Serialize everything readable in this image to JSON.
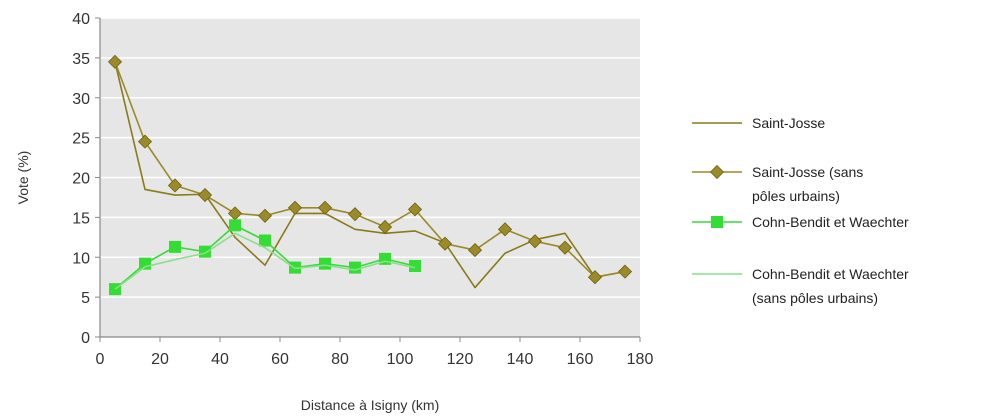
{
  "chart_data": {
    "type": "line",
    "xlabel": "Distance à Isigny (km)",
    "ylabel": "Vote (%)",
    "xlim": [
      0,
      180
    ],
    "ylim": [
      0,
      40
    ],
    "xticks": [
      0,
      20,
      40,
      60,
      80,
      100,
      120,
      140,
      160,
      180
    ],
    "yticks": [
      0,
      5,
      10,
      15,
      20,
      25,
      30,
      35,
      40
    ],
    "grid": true,
    "legend_position": "right",
    "plot_background": "#e6e6e6",
    "series": [
      {
        "name": "Saint-Josse",
        "color": "#8a7a1a",
        "marker": "none",
        "x": [
          5,
          15,
          25,
          35,
          45,
          55,
          65,
          75,
          85,
          95,
          105,
          115,
          125,
          135,
          145,
          155,
          165,
          175
        ],
        "values": [
          34.5,
          18.5,
          17.8,
          17.9,
          12.5,
          9.0,
          15.5,
          15.5,
          13.5,
          13.0,
          13.3,
          11.8,
          6.2,
          10.5,
          12.2,
          13.0,
          7.5,
          8.2
        ]
      },
      {
        "name": "Saint-Josse (sans pôles urbains)",
        "label_lines": [
          "Saint-Josse (sans",
          "pôles urbains)"
        ],
        "color": "#9a8a2a",
        "marker": "diamond",
        "x": [
          5,
          15,
          25,
          35,
          45,
          55,
          65,
          75,
          85,
          95,
          105,
          115,
          125,
          135,
          145,
          155,
          165,
          175
        ],
        "values": [
          34.5,
          24.5,
          19.0,
          17.8,
          15.5,
          15.2,
          16.2,
          16.2,
          15.4,
          13.8,
          16.0,
          11.7,
          10.9,
          13.5,
          12.0,
          11.2,
          7.5,
          8.2
        ]
      },
      {
        "name": "Cohn-Bendit et Waechter",
        "color": "#33dd33",
        "marker": "square",
        "x": [
          5,
          15,
          25,
          35,
          45,
          55,
          65,
          75,
          85,
          95,
          105
        ],
        "values": [
          6.0,
          9.2,
          11.3,
          10.7,
          14.0,
          12.1,
          8.7,
          9.2,
          8.7,
          9.8,
          8.9
        ]
      },
      {
        "name": "Cohn-Bendit et Waechter (sans pôles urbains)",
        "label_lines": [
          "Cohn-Bendit et Waechter",
          "(sans pôles urbains)"
        ],
        "color": "#88e088",
        "marker": "none",
        "x": [
          5,
          15,
          25,
          35,
          45,
          55,
          65,
          75,
          85,
          95,
          105
        ],
        "values": [
          6.0,
          8.8,
          9.7,
          10.5,
          13.0,
          11.2,
          8.6,
          9.0,
          8.4,
          9.5,
          8.7
        ]
      }
    ]
  }
}
